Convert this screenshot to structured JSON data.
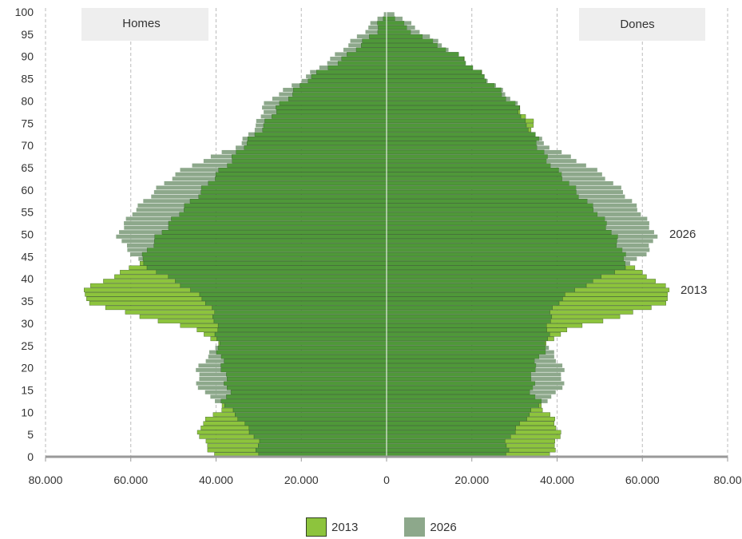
{
  "colors": {
    "s2013": "#8dc43d",
    "s2026": "#8da88b",
    "overlap": "#4f9839",
    "grid": "#bbbbbb",
    "axis": "#999999",
    "label_box": "#eeeeee"
  },
  "chart_data": {
    "type": "population-pyramid",
    "left_label": "Homes",
    "right_label": "Dones",
    "ylim": [
      0,
      100
    ],
    "xlim": [
      -80000,
      80000
    ],
    "y_ticks": [
      "0",
      "5",
      "10",
      "15",
      "20",
      "25",
      "30",
      "35",
      "40",
      "45",
      "50",
      "55",
      "60",
      "65",
      "70",
      "75",
      "80",
      "85",
      "90",
      "95",
      "100"
    ],
    "x_ticks": [
      "80.000",
      "60.000",
      "40.000",
      "20.000",
      "0",
      "20.000",
      "40.000",
      "60.000",
      "80.00"
    ],
    "annotations": [
      "2026",
      "2013"
    ],
    "anchors": {
      "age": [
        0,
        4,
        7,
        10,
        15,
        20,
        25,
        28,
        31,
        34,
        37,
        40,
        43,
        46,
        50,
        55,
        60,
        65,
        70,
        75,
        80,
        85,
        90,
        95,
        100
      ],
      "men_2013": [
        40000,
        43000,
        44000,
        40000,
        37000,
        38000,
        40000,
        43000,
        55000,
        68000,
        72000,
        66000,
        59000,
        56000,
        53000,
        49000,
        43000,
        38000,
        34000,
        28000,
        24000,
        19000,
        9000,
        3000,
        500
      ],
      "men_2026": [
        30000,
        30000,
        33000,
        36000,
        44000,
        44000,
        40000,
        40000,
        40000,
        41000,
        45000,
        51000,
        57000,
        60000,
        63000,
        60000,
        54000,
        47000,
        35000,
        30000,
        28000,
        20000,
        12000,
        6000,
        1000
      ],
      "women_2013": [
        38000,
        40000,
        40000,
        38000,
        34000,
        34000,
        38000,
        41000,
        52000,
        64000,
        67000,
        63000,
        57000,
        55000,
        53000,
        50000,
        44000,
        39000,
        36000,
        34000,
        29000,
        24000,
        17000,
        7000,
        500
      ],
      "women_2026": [
        28000,
        28000,
        31000,
        34000,
        41000,
        41000,
        38000,
        38000,
        38000,
        39000,
        43000,
        50000,
        57000,
        61000,
        63000,
        60000,
        55000,
        48000,
        38000,
        32000,
        30000,
        24000,
        17000,
        9000,
        2000
      ]
    }
  },
  "legend": [
    {
      "label": "2013",
      "key": "s2013"
    },
    {
      "label": "2026",
      "key": "s2026"
    }
  ]
}
